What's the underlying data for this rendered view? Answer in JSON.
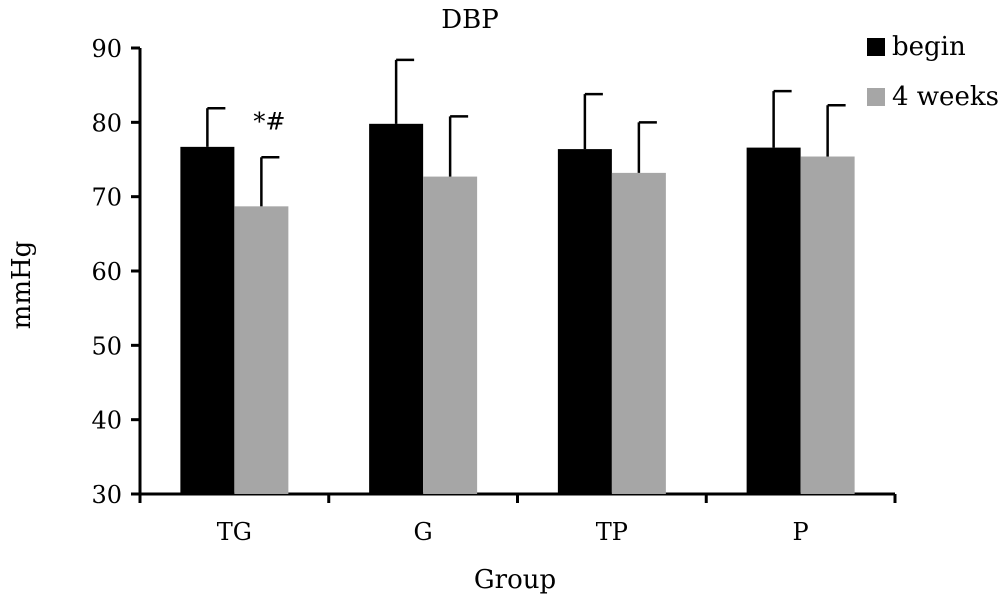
{
  "chart_data": {
    "type": "bar",
    "title": "DBP",
    "xlabel": "Group",
    "ylabel": "mmHg",
    "categories": [
      "TG",
      "G",
      "TP",
      "P"
    ],
    "ylim": [
      30,
      90
    ],
    "yticks": [
      30,
      40,
      50,
      60,
      70,
      80,
      90
    ],
    "series": [
      {
        "name": "begin",
        "color": "#000000",
        "values": [
          76.7,
          79.8,
          76.4,
          76.6
        ],
        "errors": [
          5.2,
          8.6,
          7.4,
          7.6
        ]
      },
      {
        "name": "4 weeks",
        "color": "#a6a6a6",
        "values": [
          68.7,
          72.7,
          73.2,
          75.4
        ],
        "errors": [
          6.6,
          8.1,
          6.8,
          6.9
        ]
      }
    ],
    "annotations": [
      {
        "category": "TG",
        "series": "4 weeks",
        "text": "*#"
      }
    ],
    "grid": false,
    "legend": "top-right"
  }
}
